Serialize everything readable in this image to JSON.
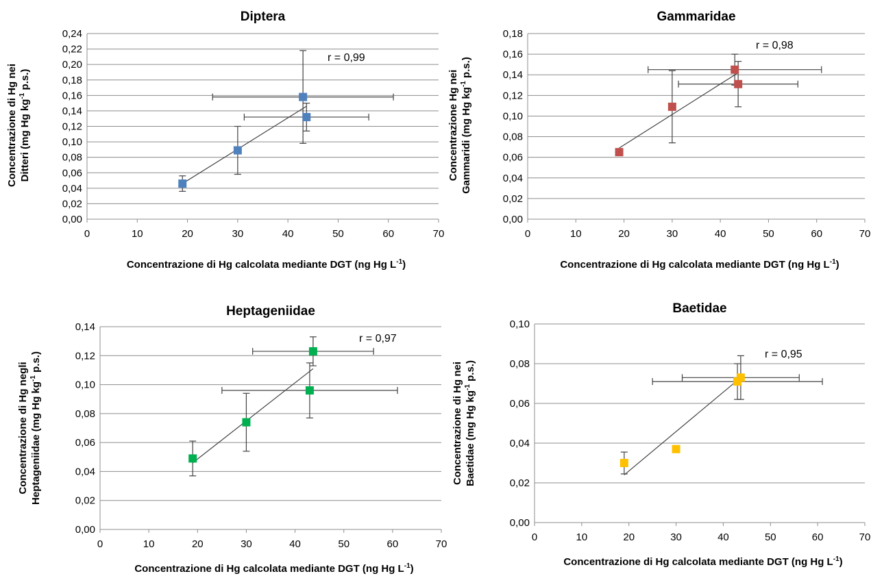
{
  "chart_data": [
    {
      "type": "scatter",
      "title": "Diptera",
      "xlabel": "Concentrazione di Hg calcolata mediante DGT (ng Hg L",
      "xlabel_sup": "-1",
      "xlabel_end": ")",
      "ylabel_line1": "Concentrazione di Hg nei",
      "ylabel_line2": "Ditteri (mg Hg kg",
      "ylabel_sup": "-1",
      "ylabel_end": " p.s.)",
      "annotation": "r = 0,99",
      "xlim": [
        0,
        70
      ],
      "ylim": [
        0,
        0.24
      ],
      "x_ticks": [
        "0",
        "10",
        "20",
        "30",
        "40",
        "50",
        "60",
        "70"
      ],
      "y_ticks": [
        "0,00",
        "0,02",
        "0,04",
        "0,06",
        "0,08",
        "0,10",
        "0,12",
        "0,14",
        "0,16",
        "0,18",
        "0,20",
        "0,22",
        "0,24"
      ],
      "color": "#4f81bd",
      "points": [
        {
          "x": 19,
          "y": 0.046,
          "xerr": 0,
          "yerr": 0.01
        },
        {
          "x": 30,
          "y": 0.089,
          "xerr": 0,
          "yerr": 0.031
        },
        {
          "x": 43,
          "y": 0.158,
          "xerr": 18,
          "yerr": 0.06
        },
        {
          "x": 43.7,
          "y": 0.132,
          "xerr": 12.4,
          "yerr": 0.018
        }
      ],
      "trendline": {
        "x": [
          19,
          43.7
        ],
        "y": [
          0.046,
          0.146
        ]
      }
    },
    {
      "type": "scatter",
      "title": "Gammaridae",
      "xlabel": "Concentrazione di Hg calcolata mediante DGT (ng Hg L",
      "xlabel_sup": "-1",
      "xlabel_end": ")",
      "ylabel_line1": "Concentrazione Hg nei",
      "ylabel_line2": "Gammaridi (mg Hg kg",
      "ylabel_sup": "-1",
      "ylabel_end": " p.s.)",
      "annotation": "r = 0,98",
      "xlim": [
        0,
        70
      ],
      "ylim": [
        0,
        0.18
      ],
      "x_ticks": [
        "0",
        "10",
        "20",
        "30",
        "40",
        "50",
        "60",
        "70"
      ],
      "y_ticks": [
        "0,00",
        "0,02",
        "0,04",
        "0,06",
        "0,08",
        "0,10",
        "0,12",
        "0,14",
        "0,16",
        "0,18"
      ],
      "color": "#c0504d",
      "points": [
        {
          "x": 19,
          "y": 0.065,
          "xerr": 0,
          "yerr": 0
        },
        {
          "x": 30,
          "y": 0.109,
          "xerr": 0,
          "yerr": 0.035
        },
        {
          "x": 43,
          "y": 0.145,
          "xerr": 18,
          "yerr": 0.015
        },
        {
          "x": 43.7,
          "y": 0.131,
          "xerr": 12.4,
          "yerr": 0.022
        }
      ],
      "trendline": {
        "x": [
          19,
          43.7
        ],
        "y": [
          0.069,
          0.142
        ]
      }
    },
    {
      "type": "scatter",
      "title": "Heptageniidae",
      "xlabel": "Concentrazione di Hg calcolata mediante DGT (ng Hg L",
      "xlabel_sup": "-1",
      "xlabel_end": ")",
      "ylabel_line1": "Concentrazione di Hg negli",
      "ylabel_line2": "Heptageniidae (mg Hg kg",
      "ylabel_sup": "-1",
      "ylabel_end": " p.s.)",
      "annotation": "r = 0,97",
      "xlim": [
        0,
        70
      ],
      "ylim": [
        0,
        0.14
      ],
      "x_ticks": [
        "0",
        "10",
        "20",
        "30",
        "40",
        "50",
        "60",
        "70"
      ],
      "y_ticks": [
        "0,00",
        "0,02",
        "0,04",
        "0,06",
        "0,08",
        "0,10",
        "0,12",
        "0,14"
      ],
      "color": "#00b050",
      "points": [
        {
          "x": 19,
          "y": 0.049,
          "xerr": 0,
          "yerr": 0.012
        },
        {
          "x": 30,
          "y": 0.074,
          "xerr": 0,
          "yerr": 0.02
        },
        {
          "x": 43,
          "y": 0.096,
          "xerr": 18,
          "yerr": 0.019
        },
        {
          "x": 43.7,
          "y": 0.123,
          "xerr": 12.4,
          "yerr": 0.01
        }
      ],
      "trendline": {
        "x": [
          19,
          43.7
        ],
        "y": [
          0.046,
          0.111
        ]
      }
    },
    {
      "type": "scatter",
      "title": "Baetidae",
      "xlabel": "Concentrazione di Hg calcolata mediante DGT (ng Hg L",
      "xlabel_sup": "-1",
      "xlabel_end": ")",
      "ylabel_line1": "Concentrazione di Hg nei",
      "ylabel_line2": "Baetidae (mg Hg kg",
      "ylabel_sup": "-1",
      "ylabel_end": " p.s.)",
      "annotation": "r = 0,95",
      "xlim": [
        0,
        70
      ],
      "ylim": [
        0,
        0.1
      ],
      "x_ticks": [
        "0",
        "10",
        "20",
        "30",
        "40",
        "50",
        "60",
        "70"
      ],
      "y_ticks": [
        "0,00",
        "0,02",
        "0,04",
        "0,06",
        "0,08",
        "0,10"
      ],
      "color": "#ffc000",
      "points": [
        {
          "x": 19,
          "y": 0.03,
          "xerr": 0,
          "yerr": 0.0055
        },
        {
          "x": 30,
          "y": 0.037,
          "xerr": 0,
          "yerr": 0
        },
        {
          "x": 43,
          "y": 0.071,
          "xerr": 18,
          "yerr": 0.009
        },
        {
          "x": 43.7,
          "y": 0.073,
          "xerr": 12.4,
          "yerr": 0.011
        }
      ],
      "trendline": {
        "x": [
          19,
          43.7
        ],
        "y": [
          0.024,
          0.073
        ]
      }
    }
  ]
}
